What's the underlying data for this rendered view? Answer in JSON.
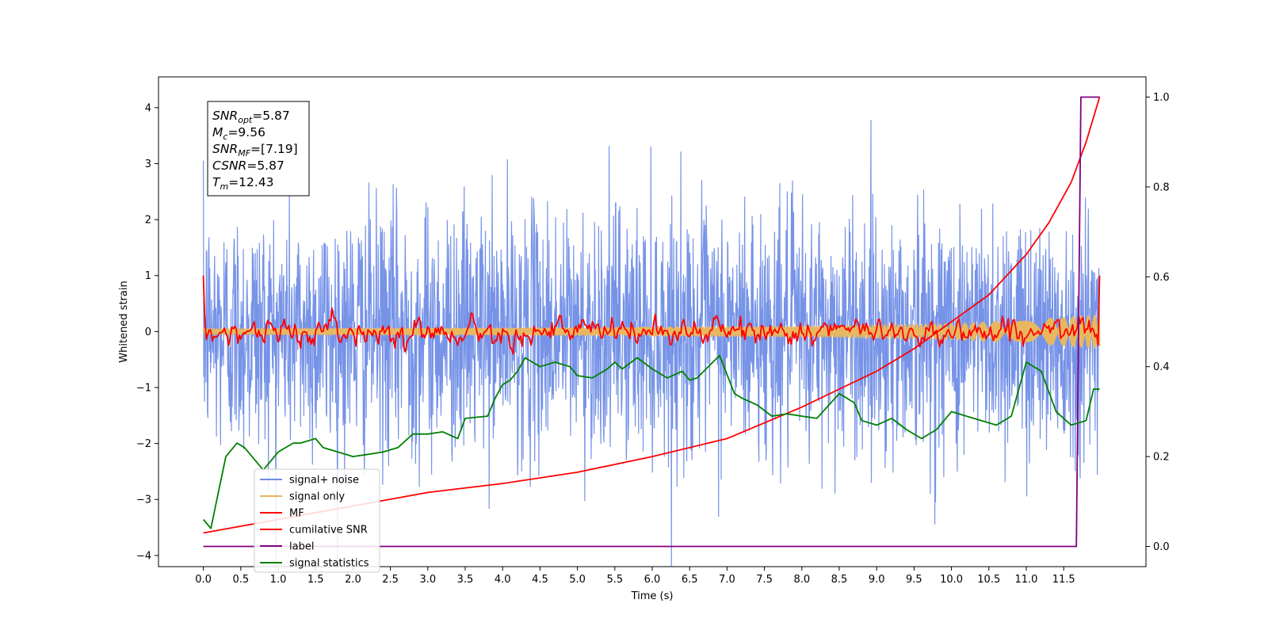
{
  "chart_data": {
    "type": "line",
    "xlabel": "Time (s)",
    "ylabel_left": "Whitened strain",
    "ylabel_right": "",
    "xlim": [
      -0.6,
      12.6
    ],
    "ylim_left": [
      -4.2,
      4.55
    ],
    "ylim_right": [
      -0.045,
      1.045
    ],
    "x_ticks": [
      "0.0",
      "0.5",
      "1.0",
      "1.5",
      "2.0",
      "2.5",
      "3.0",
      "3.5",
      "4.0",
      "4.5",
      "5.0",
      "5.5",
      "6.0",
      "6.5",
      "7.0",
      "7.5",
      "8.0",
      "8.5",
      "9.0",
      "9.5",
      "10.0",
      "10.5",
      "11.0",
      "11.5"
    ],
    "y_ticks_left": [
      "4",
      "3",
      "2",
      "1",
      "0",
      "−1",
      "−2",
      "−3",
      "−4"
    ],
    "y_ticks_right": [
      "1.0",
      "0.8",
      "0.6",
      "0.4",
      "0.2",
      "0.0"
    ],
    "grid": false,
    "legend_position": "lower-left",
    "stats_box": {
      "lines": [
        {
          "sym": "SNR",
          "sub": "opt",
          "value": "=5.87"
        },
        {
          "sym": "M",
          "sub": "c",
          "value": "=9.56"
        },
        {
          "sym": "SNR",
          "sub": "MF",
          "value": "=[7.19]"
        },
        {
          "sym": "CSNR",
          "sub": "",
          "value": "=5.87"
        },
        {
          "sym": "T",
          "sub": "m",
          "value": "=12.43"
        }
      ]
    },
    "series": [
      {
        "name": "signal+ noise",
        "axis": "left",
        "color": "#6f8de6",
        "style": "noise",
        "amplitude_std": 1.1,
        "x_range": [
          0.0,
          11.98
        ]
      },
      {
        "name": "signal only",
        "axis": "left",
        "color": "#e8b860",
        "style": "chirp",
        "envelope": {
          "x": [
            0.0,
            4.0,
            8.0,
            10.0,
            11.0,
            11.98
          ],
          "y": [
            0.05,
            0.06,
            0.09,
            0.14,
            0.2,
            0.3
          ]
        }
      },
      {
        "name": "MF",
        "axis": "left",
        "color": "#ff0000",
        "style": "jitter",
        "amplitude_std": 0.1,
        "start_value": 1.0,
        "end_value": 1.0,
        "x_range": [
          0.0,
          11.98
        ]
      },
      {
        "name": "cumilative SNR",
        "axis": "right",
        "color": "#ff0000",
        "x": [
          0.0,
          1.0,
          2.0,
          3.0,
          4.0,
          5.0,
          6.0,
          7.0,
          8.0,
          8.5,
          9.0,
          9.5,
          10.0,
          10.5,
          11.0,
          11.3,
          11.6,
          11.8,
          11.98
        ],
        "y": [
          0.03,
          0.06,
          0.09,
          0.12,
          0.14,
          0.165,
          0.2,
          0.24,
          0.31,
          0.35,
          0.39,
          0.44,
          0.5,
          0.56,
          0.65,
          0.72,
          0.81,
          0.9,
          1.0
        ]
      },
      {
        "name": "label",
        "axis": "right",
        "color": "#800080",
        "x": [
          0.0,
          11.67,
          11.73,
          11.98
        ],
        "y": [
          0.0,
          0.0,
          1.0,
          1.0
        ]
      },
      {
        "name": "signal statistics",
        "axis": "right",
        "color": "#008000",
        "x": [
          0.0,
          0.1,
          0.2,
          0.3,
          0.45,
          0.55,
          0.65,
          0.8,
          0.9,
          1.0,
          1.2,
          1.3,
          1.5,
          1.6,
          1.8,
          2.0,
          2.2,
          2.4,
          2.6,
          2.8,
          3.0,
          3.2,
          3.4,
          3.5,
          3.8,
          3.9,
          4.0,
          4.1,
          4.2,
          4.3,
          4.5,
          4.7,
          4.9,
          5.0,
          5.2,
          5.4,
          5.5,
          5.6,
          5.8,
          6.0,
          6.2,
          6.4,
          6.5,
          6.6,
          6.9,
          7.1,
          7.2,
          7.4,
          7.6,
          7.8,
          8.0,
          8.2,
          8.5,
          8.7,
          8.8,
          9.0,
          9.2,
          9.4,
          9.6,
          9.8,
          10.0,
          10.2,
          10.4,
          10.6,
          10.8,
          11.0,
          11.2,
          11.4,
          11.6,
          11.8,
          11.9,
          11.98
        ],
        "y": [
          0.06,
          0.04,
          0.12,
          0.2,
          0.23,
          0.22,
          0.2,
          0.17,
          0.19,
          0.21,
          0.23,
          0.23,
          0.24,
          0.22,
          0.21,
          0.2,
          0.205,
          0.21,
          0.22,
          0.25,
          0.25,
          0.255,
          0.24,
          0.285,
          0.29,
          0.33,
          0.36,
          0.37,
          0.39,
          0.42,
          0.4,
          0.41,
          0.4,
          0.38,
          0.375,
          0.395,
          0.41,
          0.395,
          0.42,
          0.395,
          0.375,
          0.39,
          0.37,
          0.375,
          0.425,
          0.34,
          0.33,
          0.315,
          0.29,
          0.295,
          0.29,
          0.285,
          0.34,
          0.32,
          0.28,
          0.27,
          0.285,
          0.26,
          0.24,
          0.26,
          0.3,
          0.29,
          0.28,
          0.27,
          0.29,
          0.41,
          0.39,
          0.3,
          0.27,
          0.28,
          0.35,
          0.35
        ]
      }
    ]
  }
}
